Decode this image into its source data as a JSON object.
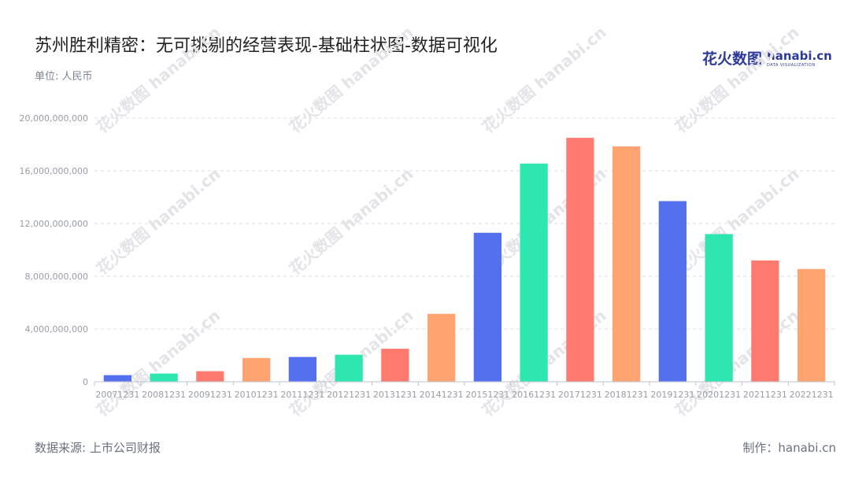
{
  "header": {
    "title": "苏州胜利精密：无可挑剔的经营表现-基础柱状图-数据可视化",
    "unit": "单位: 人民币"
  },
  "logo": {
    "cn": "花火数图",
    "en": "hanabi.cn",
    "sub": "DATA VISUALIZATION"
  },
  "footer": {
    "source": "数据来源: 上市公司财报",
    "credit": "制作：hanabi.cn"
  },
  "watermark": {
    "cn": "花火数图",
    "en": "hanabi.cn"
  },
  "colors": {
    "palette": [
      "#5470ee",
      "#2ee6b0",
      "#ff7a6e",
      "#ffa371"
    ]
  },
  "chart_data": {
    "type": "bar",
    "title": "苏州胜利精密：无可挑剔的经营表现-基础柱状图-数据可视化",
    "xlabel": "",
    "ylabel": "",
    "categories": [
      "20071231",
      "20081231",
      "20091231",
      "20101231",
      "20111231",
      "20121231",
      "20131231",
      "20141231",
      "20151231",
      "20161231",
      "20171231",
      "20181231",
      "20191231",
      "20201231",
      "20211231",
      "20221231"
    ],
    "values": [
      500000000,
      620000000,
      800000000,
      1800000000,
      1880000000,
      2050000000,
      2500000000,
      5150000000,
      11300000000,
      16550000000,
      18500000000,
      17850000000,
      13700000000,
      11200000000,
      9200000000,
      8550000000
    ],
    "ylim": [
      0,
      20000000000
    ],
    "yticks": [
      0,
      4000000000,
      8000000000,
      12000000000,
      16000000000,
      20000000000
    ],
    "ytick_labels": [
      "0",
      "4,000,000,000",
      "8,000,000,000",
      "12,000,000,000",
      "16,000,000,000",
      "20,000,000,000"
    ],
    "grid": true
  }
}
